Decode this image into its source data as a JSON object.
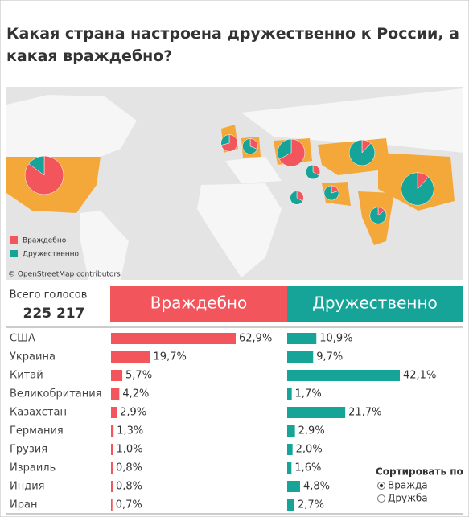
{
  "chart_data": {
    "type": "bar",
    "orientation": "horizontal",
    "title": "Какая страна настроена дружественно к России, а какая враждебно?",
    "categories": [
      "США",
      "Украина",
      "Китай",
      "Великобритания",
      "Казахстан",
      "Германия",
      "Грузия",
      "Израиль",
      "Индия",
      "Иран"
    ],
    "series": [
      {
        "name": "Враждебно",
        "color": "#f2555c",
        "values": [
          62.9,
          19.7,
          5.7,
          4.2,
          2.9,
          1.3,
          1.0,
          0.8,
          0.8,
          0.7
        ],
        "value_labels": [
          "62,9%",
          "19,7%",
          "5,7%",
          "4,2%",
          "2,9%",
          "1,3%",
          "1,0%",
          "0,8%",
          "0,8%",
          "0,7%"
        ]
      },
      {
        "name": "Дружественно",
        "color": "#16a398",
        "values": [
          10.9,
          9.7,
          42.1,
          1.7,
          21.7,
          2.9,
          2.0,
          1.6,
          4.8,
          2.7
        ],
        "value_labels": [
          "10,9%",
          "9,7%",
          "42,1%",
          "1,7%",
          "21,7%",
          "2,9%",
          "2,0%",
          "1,6%",
          "4,8%",
          "2,7%"
        ]
      }
    ]
  },
  "map_attribution": "© OpenStreetMap contributors",
  "total": {
    "label": "Всего голосов",
    "value": "225 217"
  },
  "sort": {
    "label": "Сортировать по",
    "options": [
      "Вражда",
      "Дружба"
    ],
    "selected": 0
  }
}
